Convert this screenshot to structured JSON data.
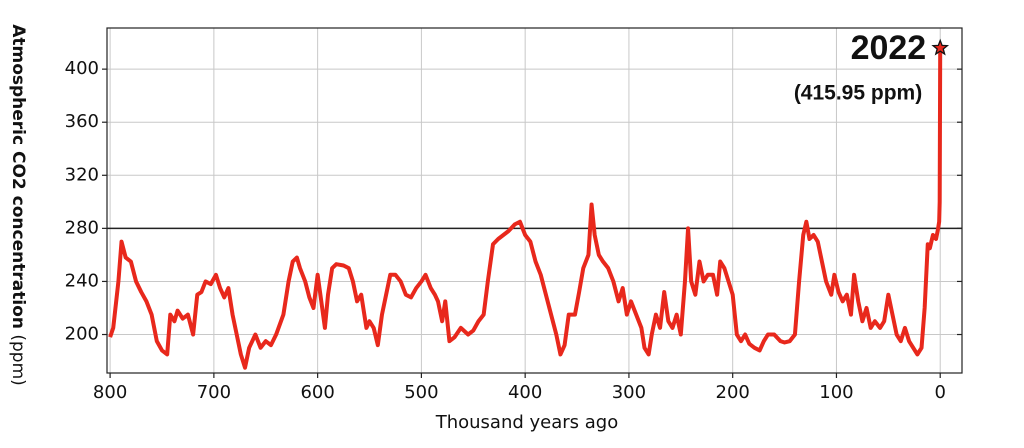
{
  "chart_data": {
    "type": "line",
    "xlabel": "Thousand years ago",
    "ylabel": "Atmospheric CO2 concentration",
    "ylabel_unit": "(ppm)",
    "annotation": "2022",
    "annotation_sub": "(415.95 ppm)",
    "color": "#e8281c",
    "xlim": [
      803,
      -21
    ],
    "ylim": [
      171,
      431
    ],
    "xticks": [
      800,
      700,
      600,
      500,
      400,
      300,
      200,
      100,
      0
    ],
    "yticks": [
      200,
      240,
      280,
      320,
      360,
      400
    ],
    "hline": 280,
    "grid": true,
    "x": [
      800,
      797,
      792,
      789,
      785,
      780,
      775,
      770,
      765,
      760,
      755,
      750,
      745,
      742,
      738,
      735,
      730,
      725,
      720,
      716,
      712,
      708,
      703,
      698,
      694,
      690,
      686,
      682,
      678,
      674,
      670,
      666,
      660,
      655,
      650,
      645,
      640,
      633,
      628,
      624,
      620,
      617,
      612,
      608,
      604,
      600,
      597,
      593,
      590,
      586,
      582,
      575,
      570,
      566,
      562,
      558,
      553,
      550,
      546,
      542,
      538,
      534,
      530,
      525,
      520,
      515,
      510,
      505,
      500,
      496,
      491,
      487,
      484,
      480,
      477,
      473,
      468,
      462,
      455,
      450,
      445,
      440,
      436,
      431,
      426,
      421,
      416,
      410,
      405,
      400,
      395,
      390,
      385,
      380,
      375,
      370,
      366,
      362,
      358,
      352,
      348,
      344,
      339,
      336,
      333,
      329,
      325,
      320,
      315,
      310,
      306,
      302,
      298,
      293,
      288,
      285,
      281,
      278,
      274,
      270,
      266,
      262,
      258,
      254,
      250,
      246,
      243,
      240,
      236,
      232,
      228,
      224,
      219,
      215,
      212,
      208,
      204,
      200,
      196,
      192,
      188,
      184,
      179,
      174,
      170,
      166,
      160,
      154,
      150,
      145,
      140,
      136,
      132,
      129,
      126,
      122,
      118,
      114,
      110,
      105,
      102,
      98,
      94,
      90,
      86,
      83,
      79,
      75,
      71,
      67,
      63,
      58,
      54,
      50,
      46,
      42,
      38,
      34,
      30,
      26,
      22,
      18,
      15,
      12,
      10,
      7,
      4,
      2,
      1,
      0.5,
      0
    ],
    "values": [
      198,
      205,
      240,
      270,
      258,
      255,
      240,
      232,
      225,
      215,
      195,
      188,
      185,
      215,
      210,
      218,
      212,
      215,
      200,
      230,
      232,
      240,
      238,
      245,
      235,
      228,
      235,
      215,
      200,
      185,
      175,
      190,
      200,
      190,
      195,
      192,
      200,
      215,
      240,
      255,
      258,
      250,
      240,
      228,
      220,
      245,
      228,
      205,
      230,
      250,
      253,
      252,
      250,
      240,
      225,
      230,
      205,
      210,
      205,
      192,
      215,
      230,
      245,
      245,
      240,
      230,
      228,
      235,
      240,
      245,
      235,
      230,
      225,
      210,
      225,
      195,
      198,
      205,
      200,
      203,
      210,
      215,
      240,
      268,
      272,
      275,
      278,
      283,
      285,
      275,
      270,
      255,
      245,
      230,
      215,
      200,
      185,
      192,
      215,
      215,
      232,
      250,
      260,
      298,
      275,
      260,
      255,
      250,
      240,
      225,
      235,
      215,
      225,
      215,
      205,
      190,
      185,
      200,
      215,
      205,
      232,
      210,
      205,
      215,
      200,
      240,
      280,
      240,
      230,
      255,
      240,
      245,
      245,
      230,
      255,
      250,
      240,
      230,
      200,
      195,
      200,
      193,
      190,
      188,
      195,
      200,
      200,
      195,
      194,
      195,
      200,
      240,
      275,
      285,
      272,
      275,
      270,
      255,
      240,
      230,
      245,
      232,
      225,
      230,
      215,
      245,
      225,
      210,
      220,
      205,
      210,
      205,
      210,
      230,
      215,
      200,
      195,
      205,
      195,
      190,
      185,
      190,
      220,
      268,
      265,
      275,
      272,
      280,
      285,
      300,
      415.95
    ]
  }
}
